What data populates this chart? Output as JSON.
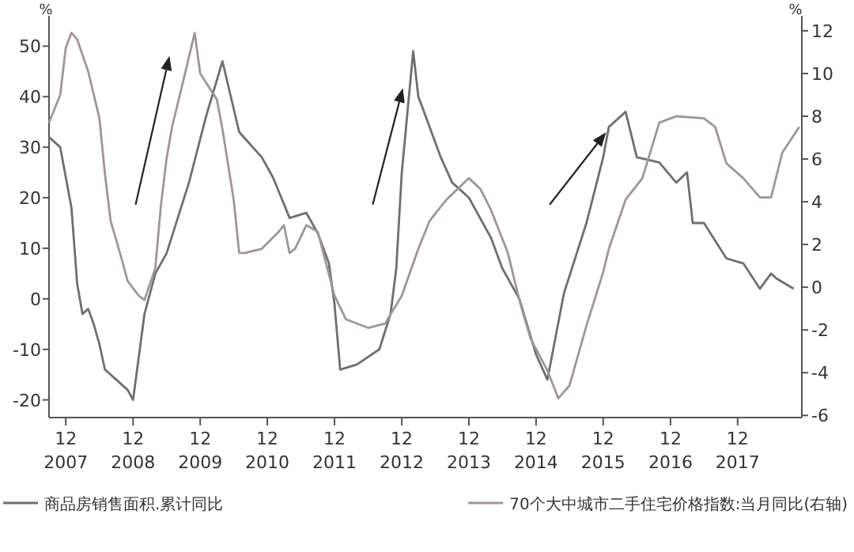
{
  "chart_data": {
    "type": "line",
    "ylabel": "%",
    "y2label": "%",
    "xlim": [
      "2007-09",
      "2018-11-15"
    ],
    "xticks": [
      {
        "value": "2007-12",
        "label": "12\n2007"
      },
      {
        "value": "2008-12",
        "label": "12\n2008"
      },
      {
        "value": "2009-12",
        "label": "12\n2009"
      },
      {
        "value": "2010-12",
        "label": "12\n2010"
      },
      {
        "value": "2011-12",
        "label": "12\n2011"
      },
      {
        "value": "2012-12",
        "label": "12\n2012"
      },
      {
        "value": "2013-12",
        "label": "12\n2013"
      },
      {
        "value": "2014-12",
        "label": "12\n2014"
      },
      {
        "value": "2015-12",
        "label": "12\n2015"
      },
      {
        "value": "2016-12",
        "label": "12\n2016"
      },
      {
        "value": "2017-12",
        "label": "12\n2017"
      }
    ],
    "ylim": [
      -23.5,
      56
    ],
    "yticks": [
      -20,
      -10,
      0,
      10,
      20,
      30,
      40,
      50
    ],
    "y2lim": [
      -6.1,
      12.7
    ],
    "y2ticks": [
      -6,
      -4,
      -2,
      0,
      2,
      4,
      6,
      8,
      10,
      12
    ],
    "grid": false,
    "legend": "bottom",
    "series": [
      {
        "name": "商品房销售面积.累计同比",
        "color": "#6f6f6f",
        "axis": "y",
        "x": [
          "2007-09",
          "2007-11",
          "2008-01",
          "2008-02",
          "2008-03",
          "2008-04",
          "2008-05",
          "2008-06",
          "2008-07",
          "2008-09",
          "2008-11",
          "2008-12",
          "2009-02",
          "2009-04",
          "2009-06",
          "2009-08",
          "2009-10",
          "2010-01",
          "2010-04",
          "2010-07",
          "2010-11",
          "2011-01",
          "2011-04",
          "2011-07",
          "2011-09",
          "2011-11",
          "2011-12",
          "2012-01",
          "2012-04",
          "2012-08",
          "2012-10",
          "2012-11",
          "2012-12",
          "2013-02",
          "2013-03",
          "2013-04",
          "2013-07",
          "2013-09",
          "2013-12",
          "2014-04",
          "2014-06",
          "2014-09",
          "2014-12",
          "2015-02",
          "2015-05",
          "2015-09",
          "2015-12",
          "2016-01",
          "2016-04",
          "2016-06",
          "2016-10",
          "2017-01",
          "2017-03",
          "2017-04",
          "2017-06",
          "2017-10",
          "2018-01",
          "2018-04",
          "2018-06",
          "2018-07",
          "2018-10"
        ],
        "values": [
          32,
          30,
          18,
          3,
          -3,
          -2,
          -5,
          -9,
          -14,
          -16,
          -18,
          -20,
          -3,
          5,
          9,
          16,
          23,
          36,
          47,
          33,
          28,
          24,
          16,
          17,
          13,
          7,
          -1,
          -14,
          -13,
          -10,
          -3,
          6,
          25,
          49,
          40,
          37,
          28,
          23,
          20,
          12,
          6,
          0,
          -11,
          -16,
          1,
          15,
          28,
          34,
          37,
          28,
          27,
          23,
          25,
          15,
          15,
          8,
          7,
          2,
          5,
          4,
          2
        ]
      },
      {
        "name": "70个大中城市二手住宅价格指数:当月同比(右轴)",
        "color": "#a3939a",
        "axis": "y2",
        "x": [
          "2007-09",
          "2007-11",
          "2007-12",
          "2008-01",
          "2008-02",
          "2008-04",
          "2008-06",
          "2008-07",
          "2008-08",
          "2008-10",
          "2008-11",
          "2009-01",
          "2009-02",
          "2009-04",
          "2009-05",
          "2009-06",
          "2009-07",
          "2009-09",
          "2009-11",
          "2009-12",
          "2010-03",
          "2010-04",
          "2010-06",
          "2010-07",
          "2010-08",
          "2010-11",
          "2011-02",
          "2011-03",
          "2011-04",
          "2011-05",
          "2011-07",
          "2011-09",
          "2011-12",
          "2012-02",
          "2012-06",
          "2012-09",
          "2012-12",
          "2013-03",
          "2013-05",
          "2013-08",
          "2013-12",
          "2014-02",
          "2014-04",
          "2014-07",
          "2014-09",
          "2014-11",
          "2015-02",
          "2015-04",
          "2015-06",
          "2015-09",
          "2015-12",
          "2016-01",
          "2016-04",
          "2016-07",
          "2016-10",
          "2017-01",
          "2017-06",
          "2017-08",
          "2017-10",
          "2018-01",
          "2018-04",
          "2018-06",
          "2018-08",
          "2018-11"
        ],
        "values": [
          7.7,
          9.0,
          11.2,
          11.9,
          11.6,
          10.1,
          7.9,
          5.3,
          3.1,
          1.3,
          0.3,
          -0.4,
          -0.6,
          0.9,
          3.8,
          6.0,
          7.5,
          9.7,
          11.9,
          10.0,
          8.8,
          7.4,
          4.1,
          1.6,
          1.6,
          1.8,
          2.6,
          2.9,
          1.6,
          1.8,
          2.9,
          2.6,
          -0.4,
          -1.5,
          -1.9,
          -1.7,
          -0.4,
          1.8,
          3.1,
          4.1,
          5.1,
          4.6,
          3.6,
          1.6,
          -0.6,
          -2.4,
          -3.9,
          -5.2,
          -4.6,
          -1.8,
          0.7,
          1.8,
          4.1,
          5.1,
          7.7,
          8.0,
          7.9,
          7.5,
          5.8,
          5.1,
          4.2,
          4.2,
          6.3,
          7.5
        ]
      }
    ]
  }
}
